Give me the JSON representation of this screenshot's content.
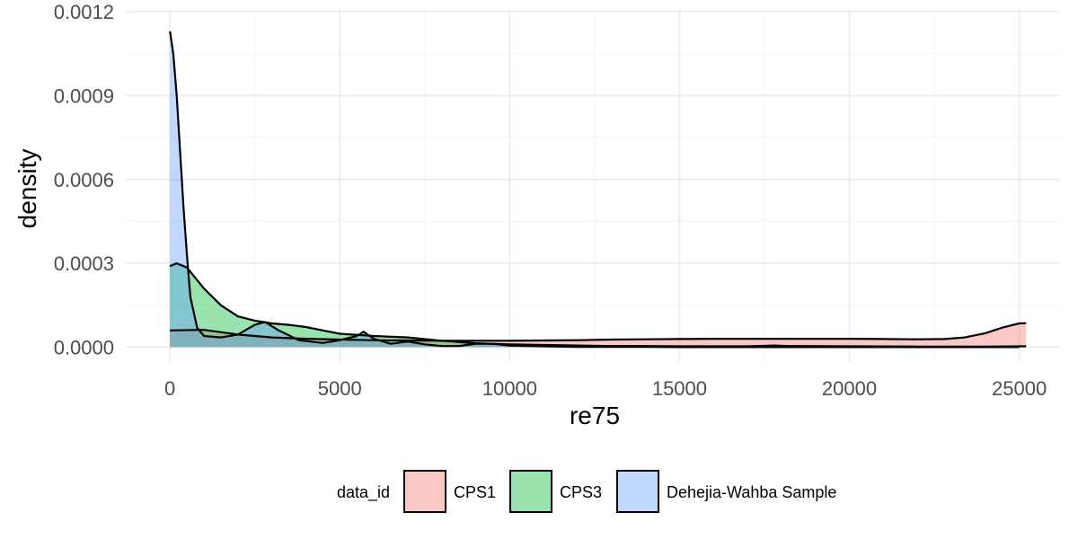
{
  "chart_data": {
    "type": "area",
    "xlabel": "re75",
    "ylabel": "density",
    "xlim": [
      -1300,
      26200
    ],
    "ylim": [
      -5e-05,
      0.00121
    ],
    "x_ticks": [
      0,
      5000,
      10000,
      15000,
      20000,
      25000
    ],
    "x_tick_labels": [
      "0",
      "5000",
      "10000",
      "15000",
      "20000",
      "25000"
    ],
    "y_ticks": [
      0.0,
      0.0003,
      0.0006,
      0.0009,
      0.0012
    ],
    "y_tick_labels": [
      "0.0000",
      "0.0003",
      "0.0006",
      "0.0009",
      "0.0012"
    ],
    "grid": true,
    "legend": {
      "title": "data_id",
      "position": "bottom",
      "entries": [
        "CPS1",
        "CPS3",
        "Dehejia-Wahba Sample"
      ]
    },
    "series": [
      {
        "name": "CPS1",
        "color": "#F8766D",
        "points": [
          [
            0,
            6e-05
          ],
          [
            1000,
            6.2e-05
          ],
          [
            2000,
            4.5e-05
          ],
          [
            3000,
            3.5e-05
          ],
          [
            4000,
            3e-05
          ],
          [
            5000,
            2.7e-05
          ],
          [
            6000,
            2.5e-05
          ],
          [
            7000,
            2.4e-05
          ],
          [
            8000,
            2.3e-05
          ],
          [
            9000,
            2.3e-05
          ],
          [
            10000,
            2.3e-05
          ],
          [
            11000,
            2.4e-05
          ],
          [
            12000,
            2.5e-05
          ],
          [
            13000,
            2.7e-05
          ],
          [
            14000,
            2.8e-05
          ],
          [
            15000,
            2.9e-05
          ],
          [
            16000,
            3e-05
          ],
          [
            17000,
            3e-05
          ],
          [
            18000,
            3e-05
          ],
          [
            19000,
            3e-05
          ],
          [
            20000,
            3e-05
          ],
          [
            21000,
            2.9e-05
          ],
          [
            22000,
            2.8e-05
          ],
          [
            22800,
            2.9e-05
          ],
          [
            23400,
            3.5e-05
          ],
          [
            24000,
            5e-05
          ],
          [
            24500,
            7e-05
          ],
          [
            25000,
            8.5e-05
          ],
          [
            25200,
            8.6e-05
          ]
        ]
      },
      {
        "name": "CPS3",
        "color": "#00BA38",
        "points": [
          [
            0,
            0.00029
          ],
          [
            200,
            0.0003
          ],
          [
            500,
            0.000285
          ],
          [
            1000,
            0.00021
          ],
          [
            1500,
            0.00015
          ],
          [
            2000,
            0.00011
          ],
          [
            2500,
            9.5e-05
          ],
          [
            3000,
            8.5e-05
          ],
          [
            3500,
            8e-05
          ],
          [
            4000,
            7.2e-05
          ],
          [
            4500,
            6e-05
          ],
          [
            5000,
            4.8e-05
          ],
          [
            6000,
            4e-05
          ],
          [
            7000,
            3.5e-05
          ],
          [
            8000,
            2.3e-05
          ],
          [
            9000,
            1.4e-05
          ],
          [
            10000,
            1e-05
          ],
          [
            11000,
            8e-06
          ],
          [
            12000,
            6e-06
          ],
          [
            13000,
            4e-06
          ],
          [
            14000,
            4e-06
          ],
          [
            15000,
            3e-06
          ],
          [
            16000,
            3e-06
          ],
          [
            17000,
            3e-06
          ],
          [
            17800,
            6e-06
          ],
          [
            18200,
            4e-06
          ],
          [
            20000,
            3e-06
          ],
          [
            22000,
            2e-06
          ],
          [
            24000,
            2e-06
          ],
          [
            25000,
            3e-06
          ],
          [
            25200,
            3e-06
          ]
        ]
      },
      {
        "name": "Dehejia-Wahba Sample",
        "color": "#619CFF",
        "points": [
          [
            0,
            0.00113
          ],
          [
            100,
            0.00105
          ],
          [
            200,
            0.0009
          ],
          [
            300,
            0.0007
          ],
          [
            400,
            0.0005
          ],
          [
            500,
            0.00033
          ],
          [
            600,
            0.00018
          ],
          [
            800,
            7e-05
          ],
          [
            1000,
            4e-05
          ],
          [
            1500,
            3.5e-05
          ],
          [
            2000,
            4.5e-05
          ],
          [
            2500,
            8e-05
          ],
          [
            2800,
            9e-05
          ],
          [
            3200,
            6e-05
          ],
          [
            3800,
            2.5e-05
          ],
          [
            4500,
            1.5e-05
          ],
          [
            5000,
            2.5e-05
          ],
          [
            5500,
            4e-05
          ],
          [
            5700,
            5.5e-05
          ],
          [
            6000,
            3e-05
          ],
          [
            6500,
            1.2e-05
          ],
          [
            7000,
            2e-05
          ],
          [
            7500,
            1e-05
          ],
          [
            8000,
            4e-06
          ],
          [
            8500,
            4e-06
          ],
          [
            9000,
            1.2e-05
          ],
          [
            9500,
            1.2e-05
          ],
          [
            10000,
            6e-06
          ],
          [
            11000,
            3e-06
          ],
          [
            12000,
            1e-06
          ],
          [
            13000,
            1e-06
          ],
          [
            14000,
            1e-06
          ],
          [
            15000,
            0
          ],
          [
            20000,
            0
          ],
          [
            25000,
            0
          ]
        ]
      }
    ]
  }
}
